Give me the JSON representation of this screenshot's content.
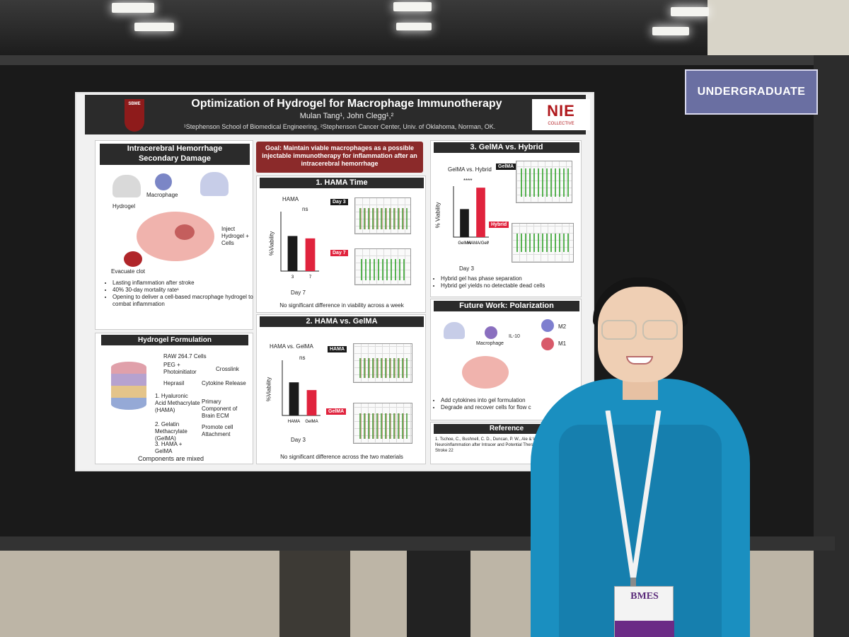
{
  "division_sign": {
    "text": "UNDERGRADUATE"
  },
  "poster": {
    "title": "Optimization of Hydrogel for Macrophage Immunotherapy",
    "authors": "Mulan Tang¹, John Clegg¹,²",
    "affiliations": "¹Stephenson School of Biomedical Engineering, ²Stephenson Cancer Center, Univ. of Oklahoma, Norman, OK.",
    "logo_left": "SBME",
    "logo_right": {
      "text": "NIE",
      "sub": "COLLECTIVE"
    },
    "sec_ich": {
      "title_l1": "Intracerebral Hemorrhage",
      "title_l2": "Secondary Damage",
      "lbl_macrophage": "Macrophage",
      "lbl_hydrogel": "Hydrogel",
      "lbl_inject": "Inject Hydrogel + Cells",
      "lbl_clot": "Evacuate clot",
      "bullets": [
        "Lasting inflammation after stroke",
        "40%  30-day mortality rate¹",
        "Opening to deliver a cell-based macrophage hydrogel to combat inflammation"
      ]
    },
    "sec_formulation": {
      "title": "Hydrogel Formulation",
      "raw": "RAW 264.7 Cells",
      "peg": "PEG + Photoinitiator",
      "crosslink": "Crosslink",
      "heprasil": "Heprasil",
      "cytokine": "Cytokine Release",
      "hama": "1. Hyaluronic Acid Methacrylate (HAMA)",
      "primary": "Primary Component of Brain ECM",
      "gelma": "2. Gelatin Methacrylate (GelMA)",
      "promote": "Promote cell Attachment",
      "hybrid": "3. HAMA + GelMA",
      "footer": "Components are mixed"
    },
    "goal": "Goal: Maintain viable macrophages as a possible injectable immunotherapy for inflammation after an intracerebral hemorrhage",
    "sec_hama_time": {
      "title": "1. HAMA Time",
      "chart_title": "HAMA",
      "sig": "ns",
      "ylabel": "%Viability",
      "xlabel": "Day 7",
      "tag1": "Day 3",
      "tag2": "Day 7",
      "footer": "No significant difference in viability across a week"
    },
    "sec_hama_gelma": {
      "title": "2. HAMA vs. GelMA",
      "chart_title": "HAMA vs. GelMA",
      "sig": "ns",
      "ylabel": "%Viability",
      "xlabel": "Day 3",
      "tag1": "HAMA",
      "tag2": "GelMA",
      "footer": "No significant difference across the two materials"
    },
    "sec_gelma_hybrid": {
      "title": "3. GelMA vs. Hybrid",
      "chart_title": "GelMA vs. Hybrid",
      "sig": "****",
      "ylabel": "% Viability",
      "xlabel": "Day 3",
      "tag1": "GelMA",
      "tag2": "Hybrid",
      "bullets": [
        "Hybrid gel has phase separation",
        "Hybrid gel yields no detectable dead cells"
      ]
    },
    "sec_future": {
      "title": "Future Work: Polarization",
      "lbl_macrophage": "Macrophage",
      "lbl_il10": "IL-10",
      "lbl_m2": "M2",
      "lbl_m1": "M1",
      "bullets": [
        "Add cytokines into gel formulation",
        "Degrade and recover cells for flow c"
      ]
    },
    "sec_reference": {
      "title": "Reference",
      "text": "1. Tschoe, C., Bushnell, C. D., Duncan, P. W., Ale & Wolfe, S. Q. Neuroinflammation after Intracer and Potential Therapeutic Targets. J Stroke 22"
    }
  },
  "name_badge": {
    "text": "BMES"
  },
  "chart_data": [
    {
      "type": "bar",
      "title": "HAMA",
      "categories": [
        "3",
        "7"
      ],
      "values": [
        59,
        55
      ],
      "ylabel": "%Viability",
      "xlabel": "Day 7",
      "ylim": [
        0,
        100
      ],
      "colors": [
        "#1a1a1a",
        "#e0233d"
      ]
    },
    {
      "type": "bar",
      "title": "HAMA vs. GelMA",
      "categories": [
        "HAMA",
        "GelMA"
      ],
      "values": [
        60,
        46
      ],
      "ylabel": "%Viability",
      "xlabel": "Day 3",
      "ylim": [
        0,
        100
      ],
      "colors": [
        "#1a1a1a",
        "#e0233d"
      ]
    },
    {
      "type": "bar",
      "title": "GelMA vs. Hybrid",
      "categories": [
        "GelMA",
        "HAMA/GelMA"
      ],
      "values": [
        55,
        97
      ],
      "ylabel": "% Viability",
      "xlabel": "Day 3",
      "ylim": [
        0,
        100
      ],
      "colors": [
        "#1a1a1a",
        "#e0233d"
      ]
    }
  ]
}
